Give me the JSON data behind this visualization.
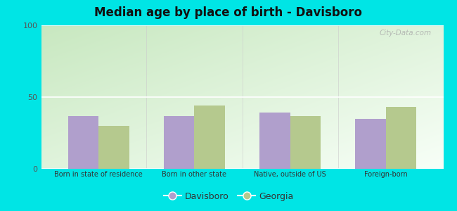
{
  "title": "Median age by place of birth - Davisboro",
  "categories": [
    "Born in state of residence",
    "Born in other state",
    "Native, outside of US",
    "Foreign-born"
  ],
  "davisboro_values": [
    37,
    37,
    39,
    35
  ],
  "georgia_values": [
    30,
    44,
    37,
    43
  ],
  "davisboro_color": "#b09fcc",
  "georgia_color": "#b5c98e",
  "ylim": [
    0,
    100
  ],
  "yticks": [
    0,
    50,
    100
  ],
  "outer_bg": "#00e5e5",
  "bar_width": 0.32,
  "legend_davisboro": "Davisboro",
  "legend_georgia": "Georgia",
  "watermark": "City-Data.com",
  "title_fontsize": 12,
  "grad_top_left": "#c8e8c0",
  "grad_top_right": "#e8f0e8",
  "grad_bottom": "#f0f8f0"
}
